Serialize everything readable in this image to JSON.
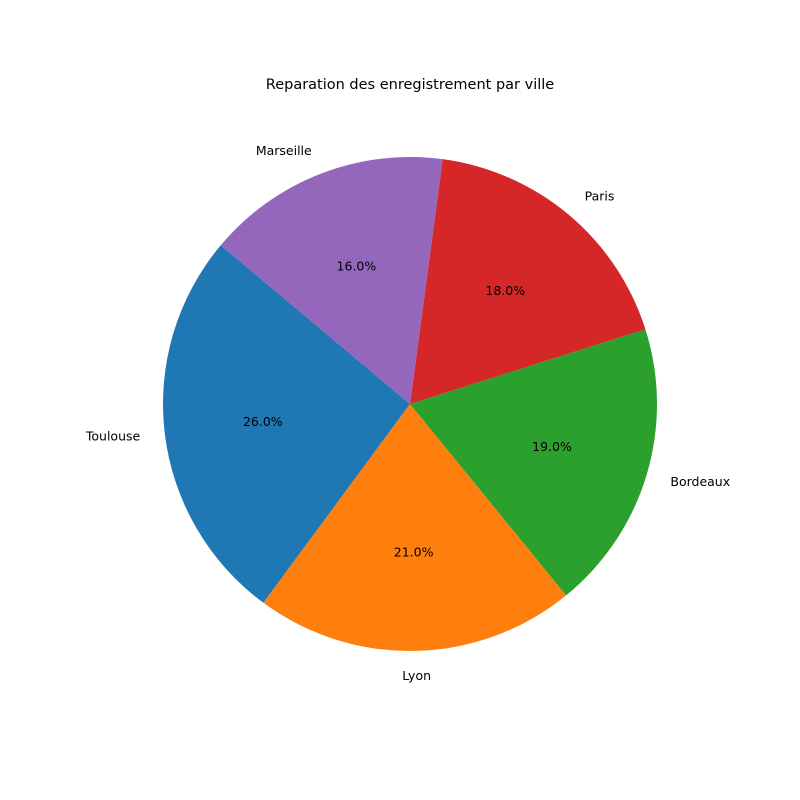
{
  "chart_data": {
    "type": "pie",
    "title": "Reparation des enregistrement par ville",
    "labels": [
      "Toulouse",
      "Lyon",
      "Bordeaux",
      "Paris",
      "Marseille"
    ],
    "values": [
      26.0,
      21.0,
      19.0,
      18.0,
      16.0
    ],
    "percent_labels": [
      "26.0%",
      "21.0%",
      "19.0%",
      "18.0%",
      "16.0%"
    ],
    "colors": [
      "#1f77b4",
      "#ff7f0e",
      "#2ca02c",
      "#d62728",
      "#9467bd"
    ],
    "start_angle_deg": 140,
    "direction": "counterclockwise",
    "legend": "none"
  }
}
